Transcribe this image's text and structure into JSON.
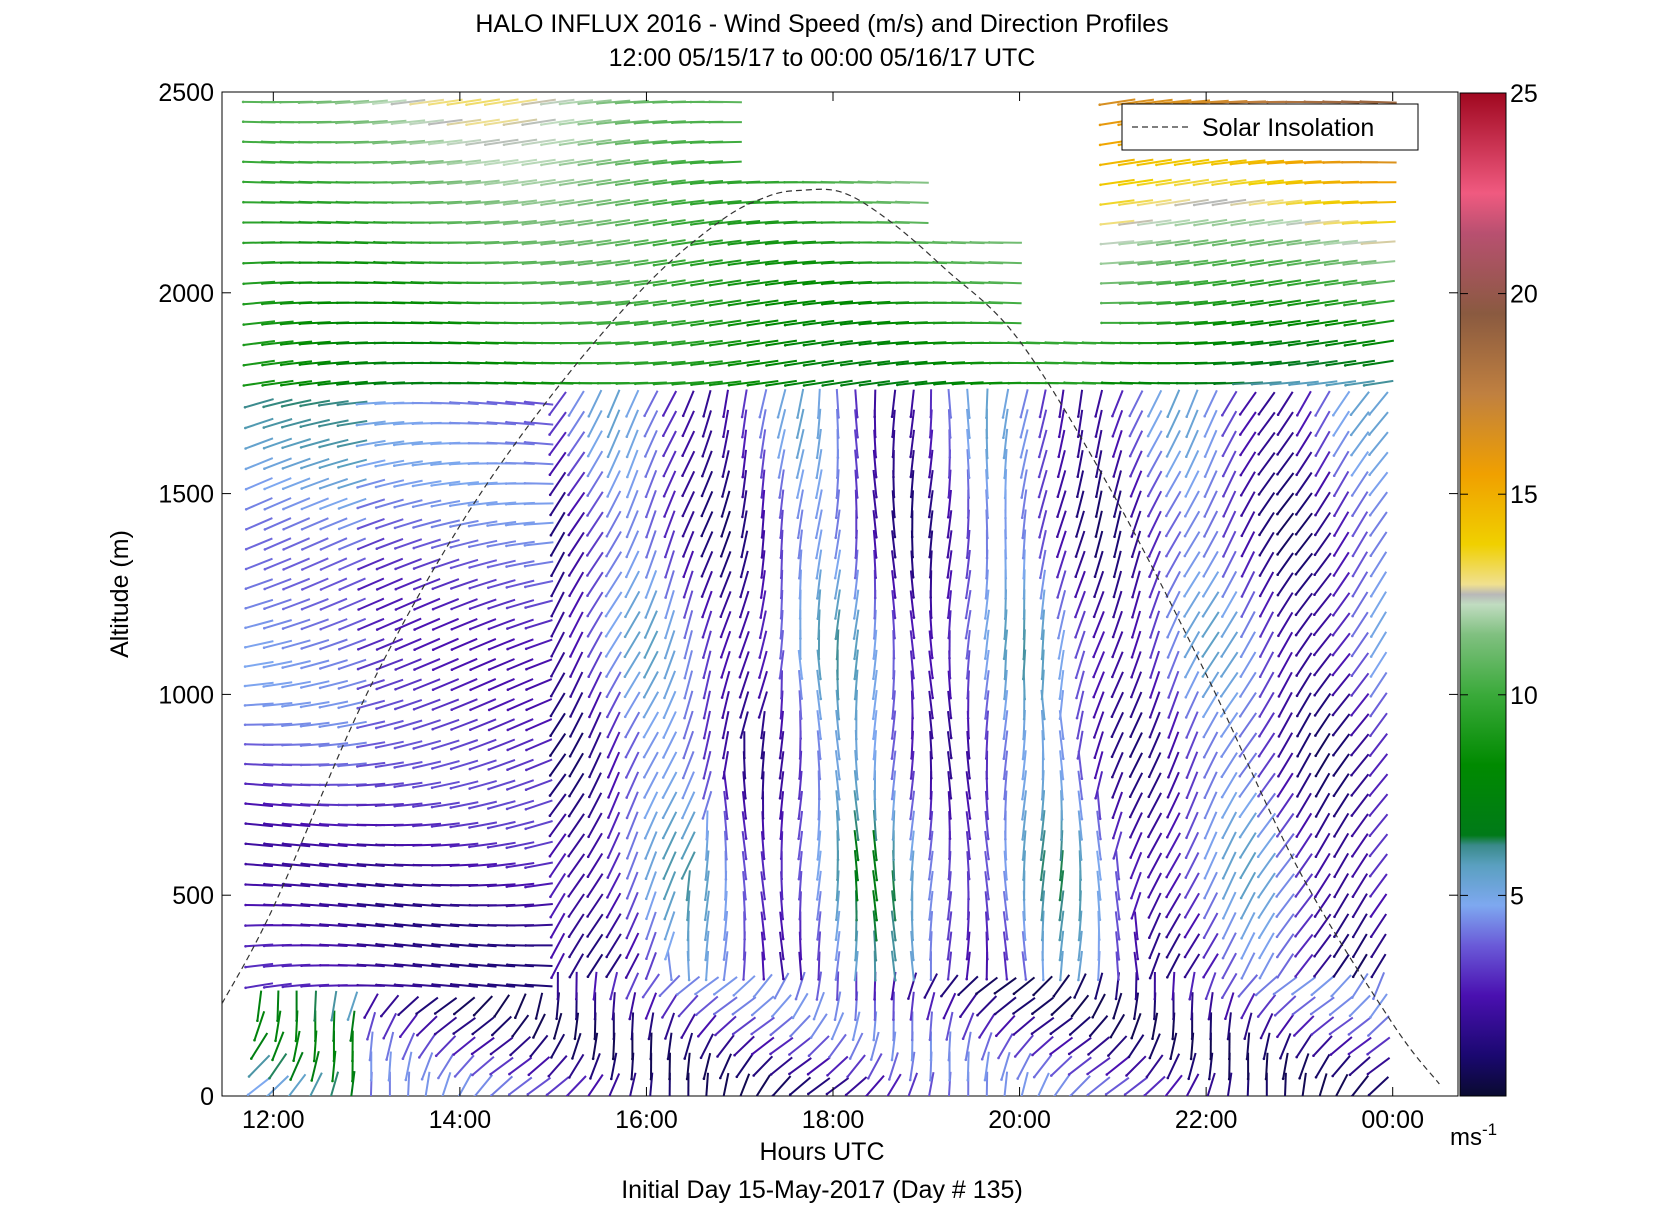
{
  "chart_data": {
    "type": "wind-barb-profile",
    "title": "HALO INFLUX 2016 - Wind Speed (m/s) and Direction Profiles",
    "subtitle": "12:00 05/15/17 to 00:00 05/16/17  UTC",
    "xlabel": "Hours UTC",
    "ylabel": "Altitude (m)",
    "footer": "Initial Day 15-May-2017 (Day # 135)",
    "x_ticks": [
      {
        "hour": 12,
        "label": "12:00"
      },
      {
        "hour": 14,
        "label": "14:00"
      },
      {
        "hour": 16,
        "label": "16:00"
      },
      {
        "hour": 18,
        "label": "18:00"
      },
      {
        "hour": 20,
        "label": "20:00"
      },
      {
        "hour": 22,
        "label": "22:00"
      },
      {
        "hour": 24,
        "label": "00:00"
      }
    ],
    "y_ticks": [
      0,
      500,
      1000,
      1500,
      2000,
      2500
    ],
    "xlim": [
      11.45,
      24.7
    ],
    "ylim": [
      0,
      2500
    ],
    "legend": {
      "label": "Solar Insolation",
      "placement": "top-right"
    },
    "colorbar": {
      "range": [
        0,
        25
      ],
      "ticks": [
        5,
        10,
        15,
        20,
        25
      ],
      "unit": "ms",
      "unit_exponent": "-1"
    },
    "solar_curve": {
      "x_hours": [
        11.45,
        12.0,
        13.0,
        14.0,
        15.0,
        16.0,
        16.8,
        17.3,
        17.65,
        18.1,
        18.6,
        19.2,
        20.0,
        21.0,
        22.0,
        23.0,
        24.0,
        24.5
      ],
      "y_m": [
        230,
        470,
        1000,
        1420,
        1750,
        2020,
        2180,
        2240,
        2255,
        2250,
        2180,
        2060,
        1880,
        1500,
        1050,
        560,
        180,
        30
      ]
    },
    "sample_times_hours": {
      "start": 11.85,
      "end": 23.85,
      "step": 0.2
    },
    "altitude_gates_m": {
      "start": 25,
      "end": 2500,
      "step": 50
    }
  }
}
